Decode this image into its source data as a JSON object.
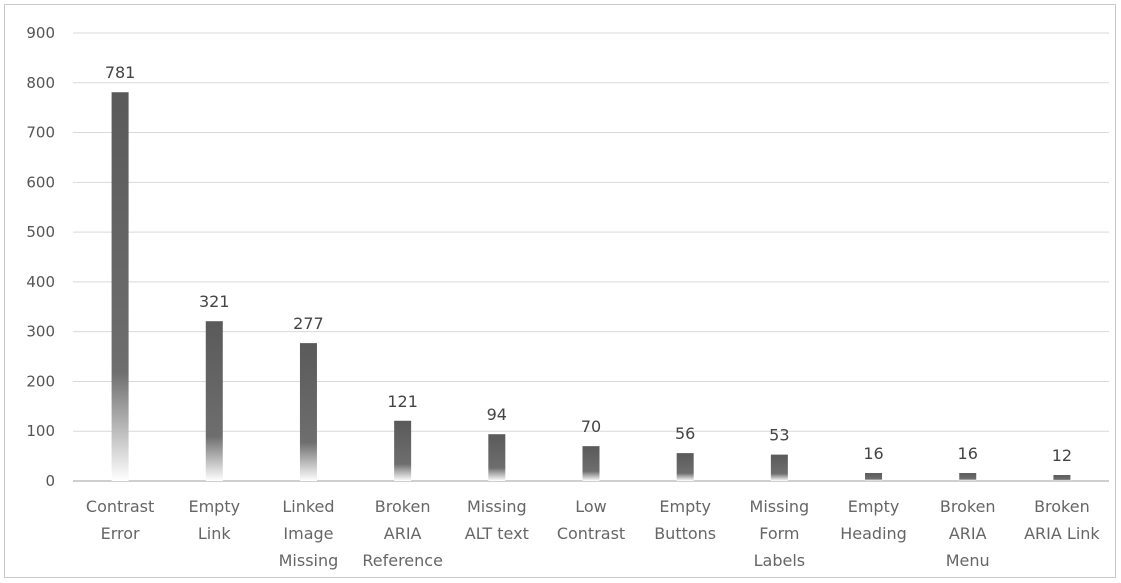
{
  "chart_data": {
    "type": "bar",
    "title": "",
    "xlabel": "",
    "ylabel": "",
    "ylim": [
      0,
      900
    ],
    "yticks": [
      0,
      100,
      200,
      300,
      400,
      500,
      600,
      700,
      800,
      900
    ],
    "grid": true,
    "legend": "none",
    "categories": [
      [
        "Contrast",
        "Error"
      ],
      [
        "Empty",
        "Link"
      ],
      [
        "Linked",
        "Image",
        "Missing"
      ],
      [
        "Broken",
        "ARIA",
        "Reference"
      ],
      [
        "Missing",
        "ALT text"
      ],
      [
        "Low",
        "Contrast"
      ],
      [
        "Empty",
        "Buttons"
      ],
      [
        "Missing",
        "Form",
        "Labels"
      ],
      [
        "Empty",
        "Heading"
      ],
      [
        "Broken",
        "ARIA",
        "Menu"
      ],
      [
        "Broken",
        "ARIA Link"
      ]
    ],
    "values": [
      781,
      321,
      277,
      121,
      94,
      70,
      56,
      53,
      16,
      16,
      12
    ],
    "data_labels": [
      "781",
      "321",
      "277",
      "121",
      "94",
      "70",
      "56",
      "53",
      "16",
      "16",
      "12"
    ],
    "colors": {
      "bar_top": "#5a5a5a",
      "bar_bottom": "#ffffff",
      "grid": "#d9d9d9",
      "axis": "#bfbfbf"
    }
  }
}
